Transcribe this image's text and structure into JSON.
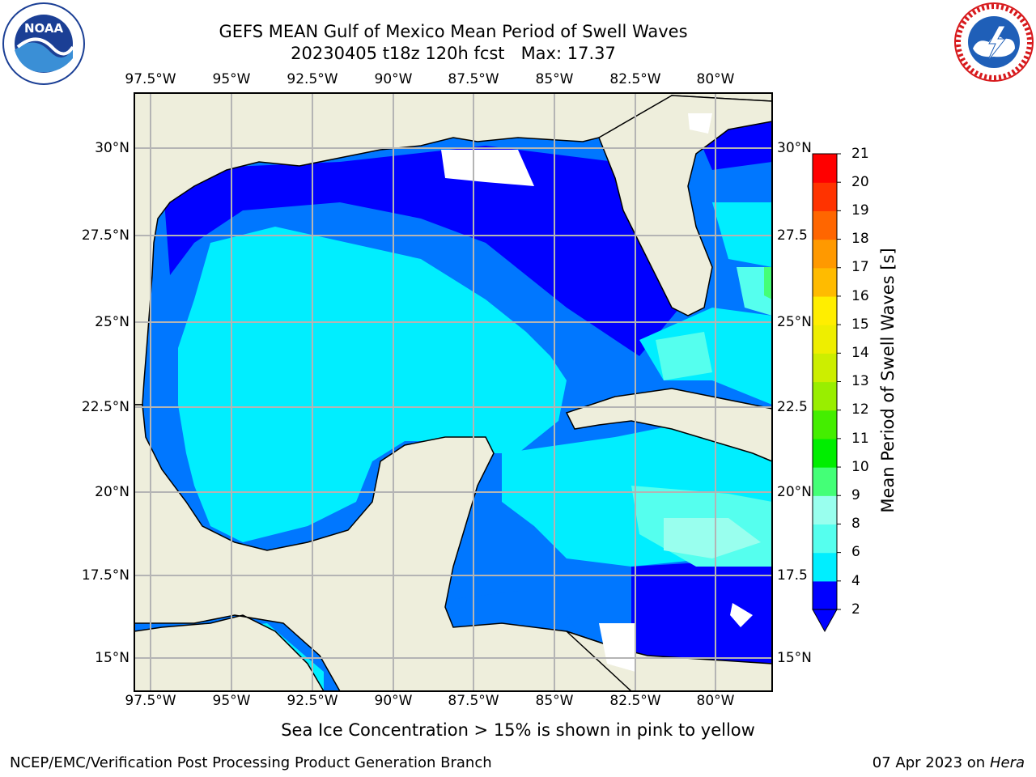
{
  "header": {
    "title": "GEFS MEAN Gulf of Mexico Mean Period of Swell Waves",
    "subtitle": "20230405 t18z 120h fcst   Max: 17.37"
  },
  "logos": {
    "left": {
      "name": "NOAA",
      "ring_text": "NATIONAL OCEANIC AND ATMOSPHERIC ADMINISTRATION · U.S. DEPARTMENT OF COMMERCE",
      "colors": [
        "#1b3f95",
        "#3a8fd6",
        "#ffffff"
      ]
    },
    "right": {
      "name": "NATIONAL WEATHER SERVICE",
      "colors": [
        "#d7191c",
        "#1f5fb8",
        "#ffffff"
      ]
    }
  },
  "map": {
    "lon_ticks": [
      "97.5°W",
      "95°W",
      "92.5°W",
      "90°W",
      "87.5°W",
      "85°W",
      "82.5°W",
      "80°W"
    ],
    "lat_ticks_left": [
      "30°N",
      "27.5°N",
      "25°N",
      "22.5°N",
      "20°N",
      "17.5°N",
      "15°N"
    ],
    "lat_ticks_right": [
      "30°N",
      "27.5",
      "25°N",
      "22.5",
      "20°N",
      "17.5",
      "15°N"
    ],
    "land_color": "#eeeedc",
    "grid_color": "#b4b4b4"
  },
  "colorbar": {
    "label": "Mean Period of Swell Waves [s]",
    "ticks": [
      "2",
      "4",
      "6",
      "8",
      "9",
      "10",
      "11",
      "12",
      "13",
      "14",
      "15",
      "16",
      "17",
      "18",
      "19",
      "20",
      "21"
    ],
    "colors": [
      "#0000ff",
      "#0077ff",
      "#00eeff",
      "#55ffee",
      "#99ffee",
      "#44ff77",
      "#00ee00",
      "#44ee00",
      "#99ee00",
      "#ccee00",
      "#eeee00",
      "#ffee00",
      "#ffbb00",
      "#ff9900",
      "#ff6600",
      "#ff3300",
      "#ff0000"
    ],
    "extend": "min"
  },
  "seaice_note": "Sea Ice Concentration > 15% is shown in pink to yellow",
  "footer": {
    "left": "NCEP/EMC/Verification Post Processing Product Generation Branch",
    "right_date": "07 Apr 2023 on ",
    "right_host": "Hera"
  }
}
